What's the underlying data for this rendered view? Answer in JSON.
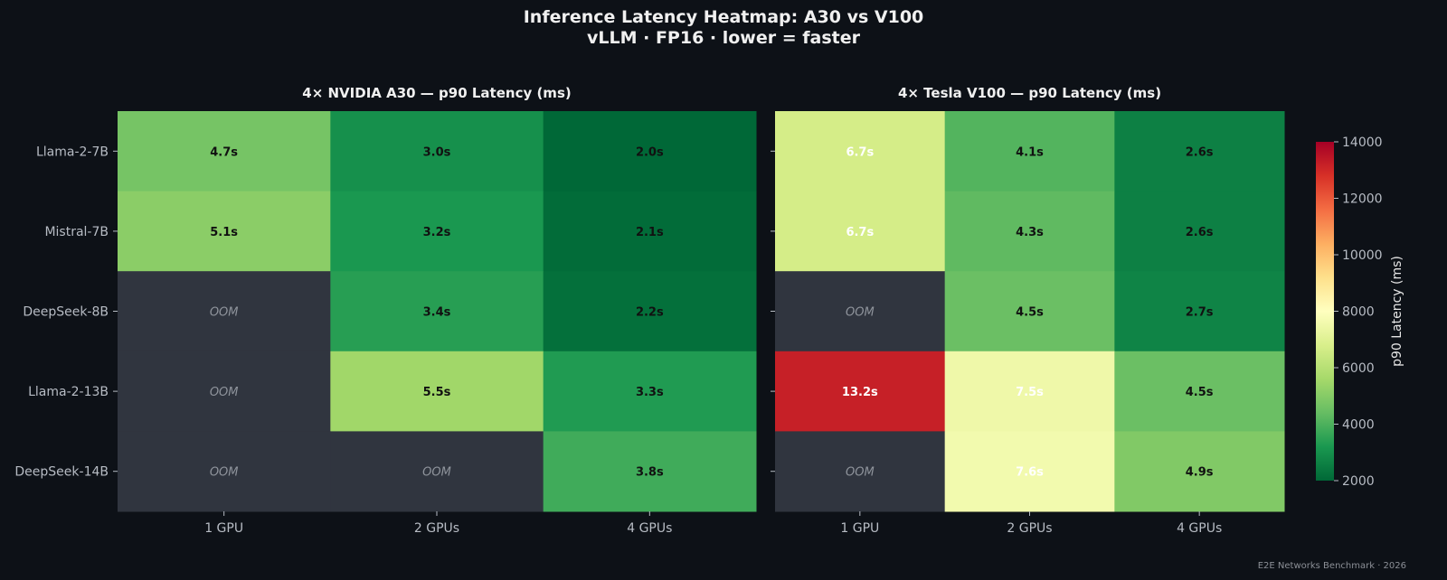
{
  "title": "Inference Latency Heatmap: A30 vs V100",
  "subtitle": "vLLM · FP16 · lower = faster",
  "footer": "E2E Networks Benchmark · 2026",
  "colors": {
    "background": "#0d1117",
    "oom_cell": "#30353f",
    "text_light": "#f0f0f0",
    "tick_text": "#b7bcc4"
  },
  "chart_data": [
    {
      "type": "heatmap",
      "title": "4× NVIDIA A30 — p90 Latency (ms)",
      "x_categories": [
        "1 GPU",
        "2 GPUs",
        "4 GPUs"
      ],
      "y_categories": [
        "Llama-2-7B",
        "Mistral-7B",
        "DeepSeek-8B",
        "Llama-2-13B",
        "DeepSeek-14B"
      ],
      "values_ms": [
        [
          4700,
          3000,
          2000
        ],
        [
          5100,
          3200,
          2100
        ],
        [
          null,
          3400,
          2200
        ],
        [
          null,
          5500,
          3300
        ],
        [
          null,
          null,
          3800
        ]
      ],
      "cell_labels": [
        [
          "4.7s",
          "3.0s",
          "2.0s"
        ],
        [
          "5.1s",
          "3.2s",
          "2.1s"
        ],
        [
          "OOM",
          "3.4s",
          "2.2s"
        ],
        [
          "OOM",
          "5.5s",
          "3.3s"
        ],
        [
          "OOM",
          "OOM",
          "3.8s"
        ]
      ]
    },
    {
      "type": "heatmap",
      "title": "4× Tesla V100 — p90 Latency (ms)",
      "x_categories": [
        "1 GPU",
        "2 GPUs",
        "4 GPUs"
      ],
      "y_categories": [
        "Llama-2-7B",
        "Mistral-7B",
        "DeepSeek-8B",
        "Llama-2-13B",
        "DeepSeek-14B"
      ],
      "values_ms": [
        [
          6700,
          4100,
          2600
        ],
        [
          6700,
          4300,
          2600
        ],
        [
          null,
          4500,
          2700
        ],
        [
          13200,
          7500,
          4500
        ],
        [
          null,
          7600,
          4900
        ]
      ],
      "cell_labels": [
        [
          "6.7s",
          "4.1s",
          "2.6s"
        ],
        [
          "6.7s",
          "4.3s",
          "2.6s"
        ],
        [
          "OOM",
          "4.5s",
          "2.7s"
        ],
        [
          "13.2s",
          "7.5s",
          "4.5s"
        ],
        [
          "OOM",
          "7.6s",
          "4.9s"
        ]
      ]
    }
  ],
  "colorbar": {
    "label": "p90 Latency (ms)",
    "range": [
      2000,
      14000
    ],
    "ticks": [
      2000,
      4000,
      6000,
      8000,
      10000,
      12000,
      14000
    ],
    "colormap": "RdYlGn_r",
    "stops": [
      "#006837",
      "#1a9850",
      "#66bd63",
      "#a6d96a",
      "#d9ef8b",
      "#ffffbf",
      "#fee08b",
      "#fdae61",
      "#f46d43",
      "#d73027",
      "#a50026"
    ]
  }
}
